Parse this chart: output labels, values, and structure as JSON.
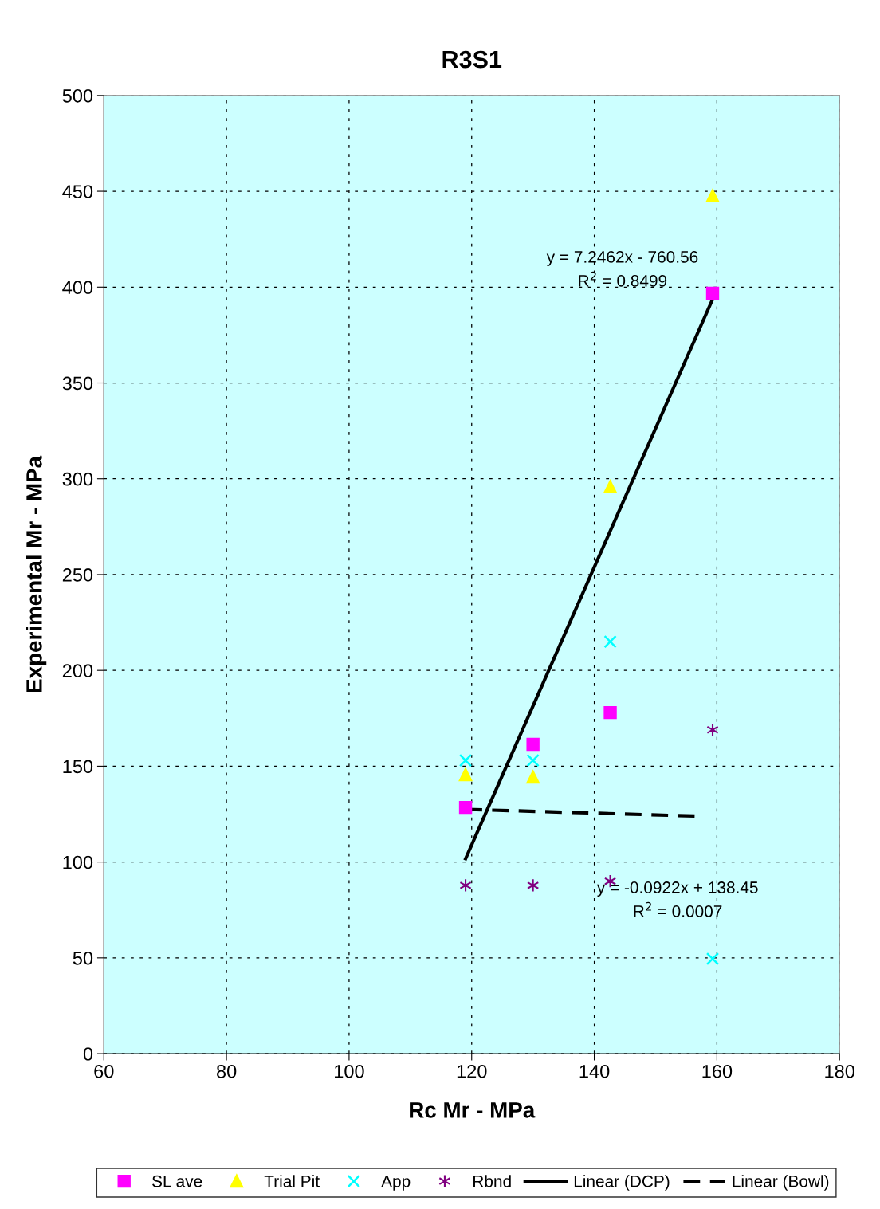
{
  "chart_data": {
    "type": "scatter",
    "title": "R3S1",
    "xlabel": "Rc Mr - MPa",
    "ylabel": "Experimental Mr - MPa",
    "xlim": [
      60,
      180
    ],
    "xticks": [
      60,
      80,
      100,
      120,
      140,
      160,
      180
    ],
    "ylim": [
      0,
      500
    ],
    "yticks": [
      0,
      50,
      100,
      150,
      200,
      250,
      300,
      350,
      400,
      450,
      500
    ],
    "grid": true,
    "legend": "bottom",
    "x": [
      119,
      130,
      142.6,
      159.3
    ],
    "series": [
      {
        "name": "SL ave",
        "color": "#ff00ff",
        "marker": "square",
        "values": [
          128.5,
          161.4,
          178,
          396.8
        ]
      },
      {
        "name": "Trial Pit",
        "color": "#ffff00",
        "marker": "triangle",
        "values": [
          145.6,
          144.3,
          295.8,
          447.6
        ]
      },
      {
        "name": "App",
        "color": "#00ffff",
        "marker": "cross",
        "values": [
          153,
          153,
          215,
          49.5
        ]
      },
      {
        "name": "Rbnd",
        "color": "#800080",
        "marker": "cross",
        "values": [
          87.8,
          87.8,
          90,
          169
        ]
      },
      {
        "name": "Linear (DCP)",
        "type": "line",
        "color": "#000000",
        "line_style": "solid",
        "x": [
          119,
          159.3
        ],
        "values": [
          101.7,
          393.7
        ]
      },
      {
        "name": "Linear (Bowl)",
        "type": "line",
        "color": "#000000",
        "line_style": "dashed",
        "x": [
          119,
          157.3
        ],
        "values": [
          127.5,
          123.9
        ]
      }
    ],
    "annotations": [
      "y = 7.2462x - 760.56",
      "R$^{2}$ = 0.8499",
      "y = -0.0922x + 138.45",
      "R$^{2}$ = 0.0007"
    ]
  }
}
